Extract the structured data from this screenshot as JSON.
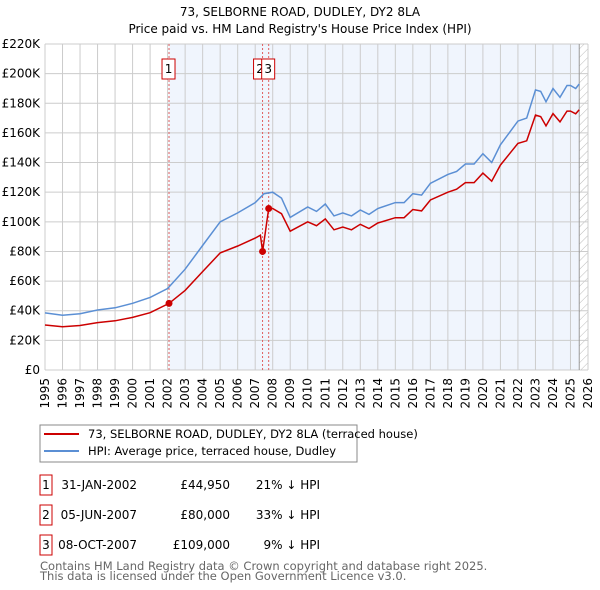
{
  "chart_data": {
    "type": "line",
    "title": "73, SELBORNE ROAD, DUDLEY, DY2 8LA",
    "subtitle": "Price paid vs. HM Land Registry's House Price Index (HPI)",
    "xlim": [
      1995,
      2026
    ],
    "ylim": [
      0,
      220000
    ],
    "grid": true,
    "x_ticks": [
      "1995",
      "1996",
      "1997",
      "1998",
      "1999",
      "2000",
      "2001",
      "2002",
      "2003",
      "2004",
      "2005",
      "2006",
      "2007",
      "2008",
      "2009",
      "2010",
      "2011",
      "2012",
      "2013",
      "2014",
      "2015",
      "2016",
      "2017",
      "2018",
      "2019",
      "2020",
      "2021",
      "2022",
      "2023",
      "2024",
      "2025",
      "2026"
    ],
    "y_ticks": [
      {
        "v": 0,
        "label": "£0"
      },
      {
        "v": 20000,
        "label": "£20K"
      },
      {
        "v": 40000,
        "label": "£40K"
      },
      {
        "v": 60000,
        "label": "£60K"
      },
      {
        "v": 80000,
        "label": "£80K"
      },
      {
        "v": 100000,
        "label": "£100K"
      },
      {
        "v": 120000,
        "label": "£120K"
      },
      {
        "v": 140000,
        "label": "£140K"
      },
      {
        "v": 160000,
        "label": "£160K"
      },
      {
        "v": 180000,
        "label": "£180K"
      },
      {
        "v": 200000,
        "label": "£200K"
      },
      {
        "v": 220000,
        "label": "£220K"
      }
    ],
    "shaded_range": [
      2002.08,
      2025.5
    ],
    "forecast_hatch_from": 2025.5,
    "series": [
      {
        "name": "73, SELBORNE ROAD, DUDLEY, DY2 8LA (terraced house)",
        "color": "#cc0000",
        "x": [
          1995,
          1996,
          1997,
          1998,
          1999,
          2000,
          2001,
          2002.08,
          2003,
          2004,
          2005,
          2006,
          2007,
          2007.3,
          2007.42,
          2007.77,
          2008,
          2008.5,
          2009,
          2010,
          2010.5,
          2011,
          2011.5,
          2012,
          2012.5,
          2013,
          2013.5,
          2014,
          2015,
          2015.5,
          2016,
          2016.5,
          2017,
          2018,
          2018.5,
          2019,
          2019.5,
          2020,
          2020.5,
          2021,
          2021.5,
          2022,
          2022.5,
          2023,
          2023.3,
          2023.6,
          2024,
          2024.4,
          2024.8,
          2025,
          2025.3,
          2025.5
        ],
        "y": [
          30400,
          29200,
          30000,
          32000,
          33200,
          35500,
          38700,
          44950,
          53700,
          66400,
          79000,
          83700,
          89000,
          91000,
          80000,
          109000,
          109000,
          105500,
          93700,
          100000,
          97400,
          102000,
          94600,
          96500,
          94600,
          98300,
          95500,
          99200,
          102800,
          102800,
          108300,
          107400,
          114700,
          120000,
          122000,
          126500,
          126500,
          132900,
          127400,
          138300,
          145600,
          152900,
          154700,
          172000,
          171000,
          164700,
          173000,
          167400,
          174700,
          174700,
          172900,
          175600
        ]
      },
      {
        "name": "HPI: Average price, terraced house, Dudley",
        "color": "#5b8fd4",
        "x": [
          1995,
          1996,
          1997,
          1998,
          1999,
          2000,
          2001,
          2002,
          2003,
          2004,
          2005,
          2006,
          2007,
          2007.5,
          2008,
          2008.5,
          2009,
          2010,
          2010.5,
          2011,
          2011.5,
          2012,
          2012.5,
          2013,
          2013.5,
          2014,
          2015,
          2015.5,
          2016,
          2016.5,
          2017,
          2018,
          2018.5,
          2019,
          2019.5,
          2020,
          2020.5,
          2021,
          2021.5,
          2022,
          2022.5,
          2023,
          2023.3,
          2023.6,
          2024,
          2024.4,
          2024.8,
          2025,
          2025.3,
          2025.5
        ],
        "y": [
          38500,
          37000,
          38000,
          40500,
          42000,
          45000,
          49000,
          55000,
          68000,
          84000,
          100000,
          106000,
          113000,
          119000,
          120000,
          116000,
          103000,
          110000,
          107000,
          112000,
          104000,
          106000,
          104000,
          108000,
          105000,
          109000,
          113000,
          113000,
          119000,
          118000,
          126000,
          132000,
          134000,
          139000,
          139000,
          146000,
          140000,
          152000,
          160000,
          168000,
          170000,
          189000,
          188000,
          181000,
          190000,
          184000,
          192000,
          192000,
          190000,
          193000
        ]
      }
    ],
    "sales": [
      {
        "n": "1",
        "x": 2002.08,
        "price": 44950,
        "date": "31-JAN-2002",
        "price_label": "£44,950",
        "hpi": "21% ↓ HPI"
      },
      {
        "n": "2",
        "x": 2007.42,
        "price": 80000,
        "date": "05-JUN-2007",
        "price_label": "£80,000",
        "hpi": "33% ↓ HPI"
      },
      {
        "n": "3",
        "x": 2007.77,
        "price": 109000,
        "date": "08-OCT-2007",
        "price_label": "£109,000",
        "hpi": "9% ↓ HPI"
      }
    ]
  },
  "footer": {
    "line1": "Contains HM Land Registry data © Crown copyright and database right 2025.",
    "line2": "This data is licensed under the Open Government Licence v3.0."
  }
}
